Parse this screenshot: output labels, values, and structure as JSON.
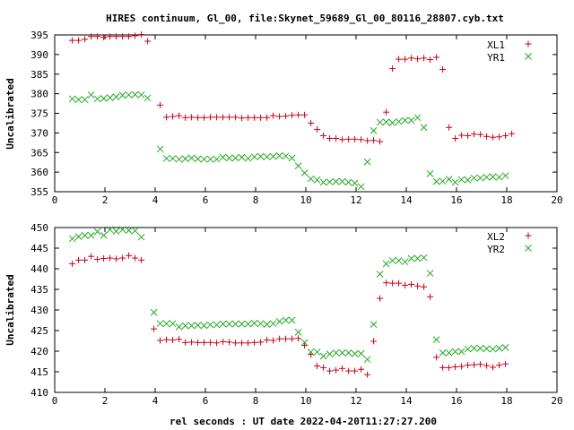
{
  "title": "HIRES continuum, Gl_00, file:Skynet_59689_Gl_00_80116_28807.cyb.txt",
  "xlabel": "rel seconds : UT date 2022-04-20T11:27:27.200",
  "colors": {
    "red": "#c8001e",
    "green": "#22aa22"
  },
  "chart_data": [
    {
      "type": "scatter",
      "ylabel": "Uncalibrated",
      "xlim": [
        0,
        20
      ],
      "ylim": [
        355,
        395
      ],
      "xticks": [
        0,
        2,
        4,
        6,
        8,
        10,
        12,
        14,
        16,
        18,
        20
      ],
      "yticks": [
        355,
        360,
        365,
        370,
        375,
        380,
        385,
        390,
        395
      ],
      "legend_position": "top-right",
      "series": [
        {
          "name": "XL1",
          "marker": "plus",
          "color": "#c8001e",
          "x": [
            0.7,
            0.95,
            1.2,
            1.45,
            1.7,
            1.95,
            2.2,
            2.45,
            2.7,
            2.95,
            3.2,
            3.45,
            3.7,
            3.95,
            4.2,
            4.45,
            4.7,
            4.95,
            5.2,
            5.45,
            5.7,
            5.95,
            6.2,
            6.45,
            6.7,
            6.95,
            7.2,
            7.45,
            7.7,
            7.95,
            8.2,
            8.45,
            8.7,
            8.95,
            9.2,
            9.45,
            9.7,
            9.95,
            10.2,
            10.45,
            10.7,
            10.95,
            11.2,
            11.45,
            11.7,
            11.95,
            12.2,
            12.45,
            12.7,
            12.95,
            13.2,
            13.45,
            13.7,
            13.95,
            14.2,
            14.45,
            14.7,
            14.95,
            15.2,
            15.45,
            15.7,
            15.95,
            16.2,
            16.45,
            16.7,
            16.95,
            17.2,
            17.45,
            17.7,
            17.95,
            18.2,
            18.45,
            18.7,
            18.95,
            19.2,
            19.45,
            19.7,
            19.95
          ],
          "y": [
            393.6,
            393.6,
            393.9,
            394.6,
            394.6,
            394.4,
            394.6,
            394.6,
            394.6,
            394.6,
            394.8,
            395.1,
            393.4,
            null,
            377.1,
            374.0,
            374.2,
            374.4,
            373.9,
            374.0,
            373.9,
            373.9,
            374.0,
            374.0,
            374.0,
            374.0,
            374.0,
            373.8,
            373.9,
            373.9,
            373.9,
            373.9,
            374.4,
            374.2,
            374.3,
            374.5,
            374.6,
            374.6,
            372.5,
            370.9,
            369.3,
            368.6,
            368.6,
            368.3,
            368.4,
            368.4,
            368.3,
            368.0,
            368.1,
            367.8,
            375.3,
            386.4,
            388.8,
            388.8,
            389.1,
            388.9,
            389.1,
            388.7,
            389.3,
            386.2,
            371.4,
            368.6,
            369.4,
            369.3,
            369.7,
            369.6,
            369.1,
            368.9,
            369.0,
            369.3,
            369.8,
            null,
            null,
            null,
            null,
            null,
            null,
            null
          ]
        },
        {
          "name": "YR1",
          "marker": "x",
          "color": "#22aa22",
          "x": [
            0.7,
            0.95,
            1.2,
            1.45,
            1.7,
            1.95,
            2.2,
            2.45,
            2.7,
            2.95,
            3.2,
            3.45,
            3.7,
            3.95,
            4.2,
            4.45,
            4.7,
            4.95,
            5.2,
            5.45,
            5.7,
            5.95,
            6.2,
            6.45,
            6.7,
            6.95,
            7.2,
            7.45,
            7.7,
            7.95,
            8.2,
            8.45,
            8.7,
            8.95,
            9.2,
            9.45,
            9.7,
            9.95,
            10.2,
            10.45,
            10.7,
            10.95,
            11.2,
            11.45,
            11.7,
            11.95,
            12.2,
            12.45,
            12.7,
            12.95,
            13.2,
            13.45,
            13.7,
            13.95,
            14.2,
            14.45,
            14.7,
            14.95,
            15.2,
            15.45,
            15.7,
            15.95,
            16.2,
            16.45,
            16.7,
            16.95,
            17.2,
            17.45,
            17.7,
            17.95,
            18.2,
            18.45,
            18.7,
            18.95,
            19.2,
            19.45,
            19.7,
            19.95
          ],
          "y": [
            378.7,
            378.5,
            378.5,
            379.7,
            378.7,
            378.8,
            379.0,
            379.2,
            379.6,
            379.7,
            379.8,
            379.7,
            378.9,
            null,
            365.9,
            363.5,
            363.5,
            363.3,
            363.4,
            363.6,
            363.4,
            363.3,
            363.3,
            363.3,
            363.8,
            363.6,
            363.6,
            363.8,
            363.5,
            363.9,
            364.0,
            363.9,
            364.0,
            364.2,
            364.1,
            363.6,
            361.6,
            359.8,
            358.3,
            358.0,
            357.4,
            357.5,
            357.6,
            357.6,
            357.4,
            357.2,
            356.3,
            362.6,
            370.6,
            372.7,
            372.8,
            372.6,
            372.9,
            373.2,
            373.2,
            373.9,
            371.4,
            359.6,
            357.6,
            357.7,
            358.2,
            357.4,
            358.1,
            358.0,
            358.5,
            358.5,
            358.7,
            358.8,
            358.7,
            359.1,
            null,
            null,
            null,
            null,
            null,
            null,
            null,
            null
          ]
        }
      ]
    },
    {
      "type": "scatter",
      "ylabel": "Uncalibrated",
      "xlim": [
        0,
        20
      ],
      "ylim": [
        410,
        450
      ],
      "xticks": [
        0,
        2,
        4,
        6,
        8,
        10,
        12,
        14,
        16,
        18,
        20
      ],
      "yticks": [
        410,
        415,
        420,
        425,
        430,
        435,
        440,
        445,
        450
      ],
      "legend_position": "top-right",
      "series": [
        {
          "name": "XL2",
          "marker": "plus",
          "color": "#c8001e",
          "x": [
            0.7,
            0.95,
            1.2,
            1.45,
            1.7,
            1.95,
            2.2,
            2.45,
            2.7,
            2.95,
            3.2,
            3.45,
            3.7,
            3.95,
            4.2,
            4.45,
            4.7,
            4.95,
            5.2,
            5.45,
            5.7,
            5.95,
            6.2,
            6.45,
            6.7,
            6.95,
            7.2,
            7.45,
            7.7,
            7.95,
            8.2,
            8.45,
            8.7,
            8.95,
            9.2,
            9.45,
            9.7,
            9.95,
            10.2,
            10.45,
            10.7,
            10.95,
            11.2,
            11.45,
            11.7,
            11.95,
            12.2,
            12.45,
            12.7,
            12.95,
            13.2,
            13.45,
            13.7,
            13.95,
            14.2,
            14.45,
            14.7,
            14.95,
            15.2,
            15.45,
            15.7,
            15.95,
            16.2,
            16.45,
            16.7,
            16.95,
            17.2,
            17.45,
            17.7,
            17.95,
            18.2,
            18.45,
            18.7,
            18.95,
            19.2,
            19.45,
            19.7,
            19.95
          ],
          "y": [
            441.2,
            442.1,
            442.1,
            443.0,
            442.3,
            442.5,
            442.6,
            442.4,
            442.6,
            443.2,
            442.6,
            442.1,
            null,
            425.4,
            422.6,
            422.8,
            422.7,
            422.9,
            422.1,
            422.2,
            422.1,
            422.1,
            422.1,
            422.0,
            422.3,
            422.2,
            422.0,
            422.0,
            422.0,
            422.1,
            422.2,
            422.7,
            422.6,
            423.0,
            423.0,
            423.0,
            423.1,
            421.4,
            419.2,
            416.4,
            416.0,
            415.2,
            415.4,
            415.8,
            415.2,
            415.2,
            415.6,
            414.3,
            422.4,
            432.8,
            436.6,
            436.5,
            436.5,
            436.0,
            436.2,
            435.8,
            435.6,
            433.2,
            418.5,
            416.0,
            416.0,
            416.2,
            416.3,
            416.6,
            416.7,
            416.8,
            416.5,
            416.1,
            416.6,
            416.9,
            null,
            null,
            null,
            null,
            null,
            null,
            null,
            null
          ]
        },
        {
          "name": "YR2",
          "marker": "x",
          "color": "#22aa22",
          "x": [
            0.7,
            0.95,
            1.2,
            1.45,
            1.7,
            1.95,
            2.2,
            2.45,
            2.7,
            2.95,
            3.2,
            3.45,
            3.7,
            3.95,
            4.2,
            4.45,
            4.7,
            4.95,
            5.2,
            5.45,
            5.7,
            5.95,
            6.2,
            6.45,
            6.7,
            6.95,
            7.2,
            7.45,
            7.7,
            7.95,
            8.2,
            8.45,
            8.7,
            8.95,
            9.2,
            9.45,
            9.7,
            9.95,
            10.2,
            10.45,
            10.7,
            10.95,
            11.2,
            11.45,
            11.7,
            11.95,
            12.2,
            12.45,
            12.7,
            12.95,
            13.2,
            13.45,
            13.7,
            13.95,
            14.2,
            14.45,
            14.7,
            14.95,
            15.2,
            15.45,
            15.7,
            15.95,
            16.2,
            16.45,
            16.7,
            16.95,
            17.2,
            17.45,
            17.7,
            17.95,
            18.2,
            18.45,
            18.7,
            18.95,
            19.2,
            19.45,
            19.7,
            19.95
          ],
          "y": [
            447.3,
            447.8,
            448.1,
            448.1,
            449.0,
            448.1,
            449.5,
            449.1,
            449.5,
            449.3,
            449.2,
            447.7,
            null,
            429.4,
            426.7,
            426.7,
            426.7,
            425.9,
            426.2,
            426.2,
            426.3,
            426.2,
            426.4,
            426.4,
            426.6,
            426.6,
            426.6,
            426.6,
            426.6,
            426.8,
            426.7,
            426.5,
            426.7,
            427.2,
            427.5,
            427.5,
            424.6,
            422.1,
            419.8,
            419.8,
            418.8,
            419.3,
            419.6,
            419.6,
            419.6,
            419.4,
            419.4,
            418.0,
            426.5,
            438.7,
            441.2,
            442.0,
            442.0,
            441.7,
            442.5,
            442.5,
            442.7,
            438.9,
            422.8,
            419.6,
            419.6,
            419.9,
            419.9,
            420.5,
            420.7,
            420.7,
            420.6,
            420.5,
            420.7,
            420.9,
            null,
            null,
            null,
            null,
            null,
            null,
            null,
            null
          ]
        }
      ]
    }
  ]
}
